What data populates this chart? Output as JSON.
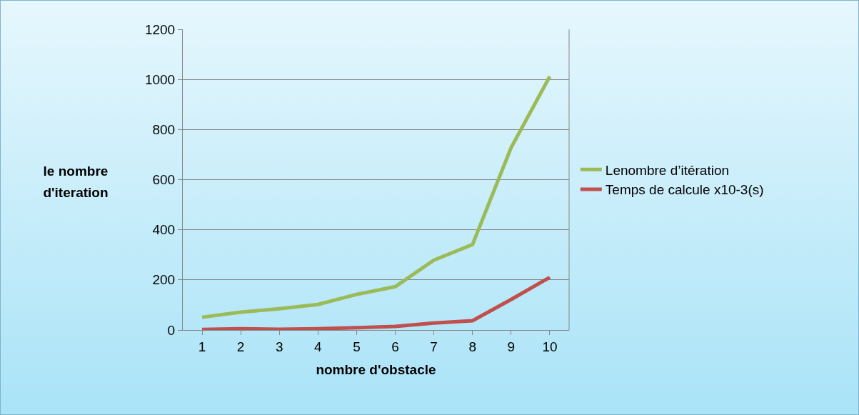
{
  "chart_data": {
    "type": "line",
    "xlabel": "nombre d'obstacle",
    "ylabel": "le nombre d'iteration",
    "categories": [
      "1",
      "2",
      "3",
      "4",
      "5",
      "6",
      "7",
      "8",
      "9",
      "10"
    ],
    "series": [
      {
        "name": "Lenombre d’itération",
        "color": "#9bbb59",
        "values": [
          51,
          71,
          85,
          102,
          142,
          173,
          279,
          341,
          728,
          1012
        ]
      },
      {
        "name": "Temps de calcule x10-3(s)",
        "color": "#c0504d",
        "values": [
          2,
          5,
          3,
          5,
          9,
          14,
          28,
          37,
          122,
          210
        ]
      }
    ],
    "ylim": [
      0,
      1200
    ],
    "yticks": [
      0,
      200,
      400,
      600,
      800,
      1000,
      1200
    ],
    "grid": "y",
    "legend": "right",
    "marker": "none",
    "line_style": "solid"
  }
}
